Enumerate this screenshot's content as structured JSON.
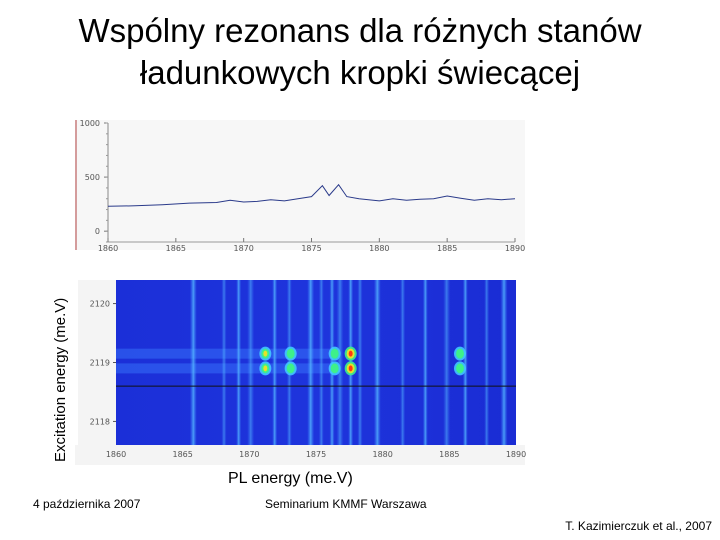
{
  "slide": {
    "title_line1": "Wspólny rezonans dla różnych stanów",
    "title_line2": "ładunkowych kropki świecącej",
    "footer_date": "4 października 2007",
    "footer_seminar": "Seminarium KMMF Warszawa",
    "footer_author": "T. Kazimierczuk et al., 2007"
  },
  "chart_data": [
    {
      "type": "line",
      "title": "",
      "xlabel": "",
      "ylabel": "",
      "x_ticks": [
        "1860",
        "1865",
        "1870",
        "1875",
        "1880",
        "1885",
        "1890"
      ],
      "y_ticks": [
        "0",
        "500",
        "1000"
      ],
      "xlim": [
        1860,
        1890
      ],
      "ylim": [
        -100,
        1000
      ],
      "series": [
        {
          "points": [
            [
              1860,
              230
            ],
            [
              1862,
              235
            ],
            [
              1864,
              245
            ],
            [
              1866,
              260
            ],
            [
              1868,
              265
            ],
            [
              1869,
              285
            ],
            [
              1870,
              270
            ],
            [
              1871,
              275
            ],
            [
              1872,
              290
            ],
            [
              1873,
              280
            ],
            [
              1874,
              300
            ],
            [
              1875,
              320
            ],
            [
              1875.8,
              420
            ],
            [
              1876.3,
              330
            ],
            [
              1877,
              430
            ],
            [
              1877.6,
              320
            ],
            [
              1878.5,
              300
            ],
            [
              1880,
              280
            ],
            [
              1881,
              300
            ],
            [
              1882,
              285
            ],
            [
              1883,
              295
            ],
            [
              1884,
              300
            ],
            [
              1885,
              325
            ],
            [
              1886,
              305
            ],
            [
              1887,
              285
            ],
            [
              1888,
              300
            ],
            [
              1889,
              290
            ],
            [
              1890,
              300
            ]
          ]
        }
      ]
    },
    {
      "type": "heatmap",
      "title": "",
      "xlabel": "PL energy (me.V)",
      "ylabel": "Excitation energy (me.V)",
      "x_ticks": [
        "1860",
        "1865",
        "1870",
        "1875",
        "1880",
        "1885",
        "1890"
      ],
      "y_ticks": [
        "2118",
        "2119",
        "2120"
      ],
      "xlim": [
        1860,
        1890
      ],
      "ylim": [
        2117.6,
        2120.4
      ],
      "marker_line_y": 2118.6,
      "colormap": [
        "#1a2ad6",
        "#2f6dff",
        "#41c8ff",
        "#3ef08a",
        "#e6e22a",
        "#ff3a10"
      ],
      "bright_lines_x": [
        1865.8,
        1868.1,
        1869.2,
        1870.1,
        1871.9,
        1873.0,
        1874.6,
        1875.4,
        1876.2,
        1876.8,
        1877.6,
        1878.3,
        1879.6,
        1881.5,
        1883.2,
        1884.8,
        1886.2,
        1887.8,
        1889.1
      ],
      "hot_spots": [
        {
          "x": 1871.2,
          "y": 2119.15,
          "level": 4
        },
        {
          "x": 1871.2,
          "y": 2118.9,
          "level": 4
        },
        {
          "x": 1873.1,
          "y": 2119.15,
          "level": 3
        },
        {
          "x": 1873.1,
          "y": 2118.9,
          "level": 3
        },
        {
          "x": 1876.4,
          "y": 2119.15,
          "level": 3
        },
        {
          "x": 1876.4,
          "y": 2118.9,
          "level": 3
        },
        {
          "x": 1877.6,
          "y": 2119.15,
          "level": 5
        },
        {
          "x": 1877.6,
          "y": 2118.9,
          "level": 5
        },
        {
          "x": 1885.8,
          "y": 2119.15,
          "level": 3
        },
        {
          "x": 1885.8,
          "y": 2118.9,
          "level": 3
        }
      ]
    }
  ]
}
